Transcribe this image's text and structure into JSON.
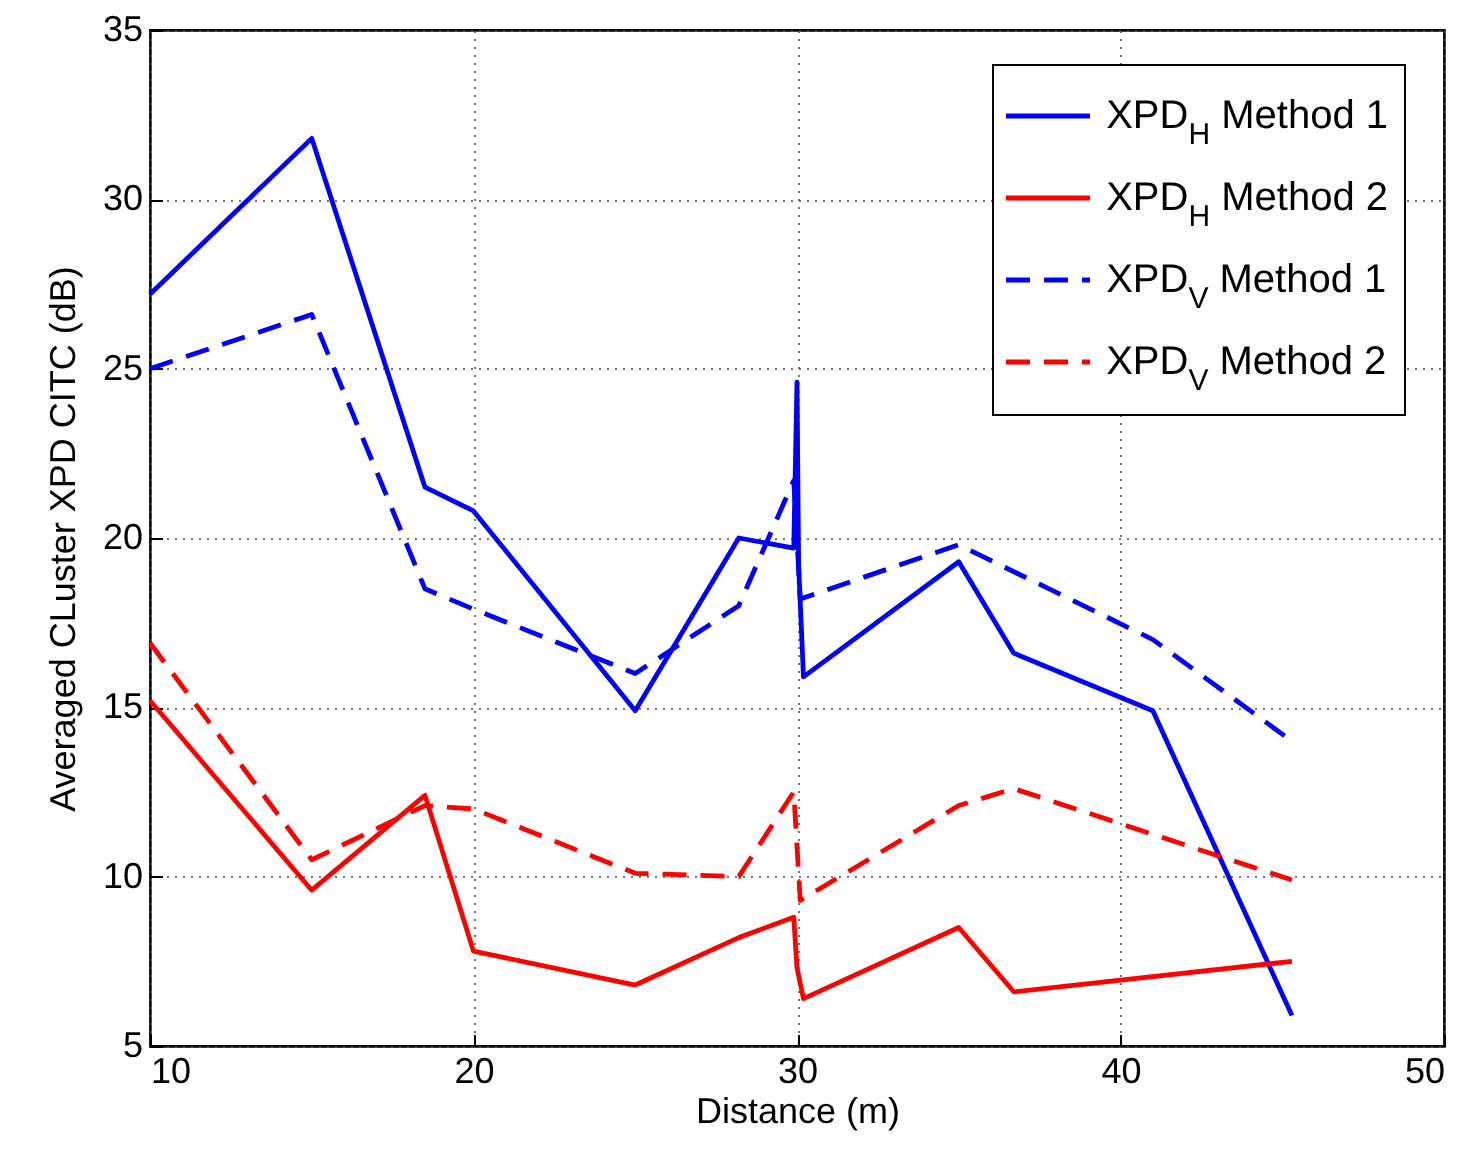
{
  "chart_data": {
    "type": "line",
    "xlabel": "Distance (m)",
    "ylabel": "Averaged CLuster XPD CITC (dB)",
    "xlim": [
      10,
      50
    ],
    "xticks": [
      10,
      20,
      30,
      40,
      50
    ],
    "ylim": [
      5,
      35
    ],
    "yticks": [
      5,
      10,
      15,
      20,
      25,
      30,
      35
    ],
    "grid": true,
    "legend": "top right",
    "series": [
      {
        "name": "XPD$_{H}$ Method 1",
        "color": "#0000ff",
        "line_style": "solid",
        "x": [
          10,
          15,
          18.5,
          20,
          25,
          28.2,
          29.9,
          30,
          30.05,
          30.2,
          35,
          36.7,
          41,
          45.3
        ],
        "values": [
          27.2,
          31.8,
          21.5,
          20.8,
          14.9,
          20,
          19.7,
          24.6,
          19.2,
          15.9,
          19.3,
          16.6,
          14.9,
          5.9
        ]
      },
      {
        "name": "XPD$_{H}$ Method 2",
        "color": "#ff0000",
        "line_style": "solid",
        "x": [
          10,
          15,
          18.5,
          20,
          25,
          28.2,
          29.9,
          30,
          30.2,
          35,
          36.7,
          45.3
        ],
        "values": [
          15.2,
          9.6,
          12.4,
          7.8,
          6.8,
          8.2,
          8.8,
          7.3,
          6.4,
          8.5,
          6.6,
          7.5
        ]
      },
      {
        "name": "XPD$_{V}$ Method 1",
        "color": "#0000ff",
        "line_style": "dashed",
        "x": [
          10,
          15,
          18.5,
          20,
          25,
          28.2,
          29.9,
          30.1,
          35,
          41,
          45.3
        ],
        "values": [
          25,
          26.6,
          18.5,
          17.9,
          16,
          18,
          21.7,
          18.2,
          19.8,
          17,
          14
        ]
      },
      {
        "name": "XPD$_{V}$ Method 2",
        "color": "#ff0000",
        "line_style": "dashed",
        "x": [
          10,
          15,
          18.5,
          20,
          25,
          28.2,
          29.9,
          30.1,
          35,
          36.7,
          45.3
        ],
        "values": [
          16.9,
          10.5,
          12.1,
          12,
          10.1,
          10,
          12.5,
          9.3,
          12.1,
          12.6,
          9.9
        ]
      }
    ]
  }
}
